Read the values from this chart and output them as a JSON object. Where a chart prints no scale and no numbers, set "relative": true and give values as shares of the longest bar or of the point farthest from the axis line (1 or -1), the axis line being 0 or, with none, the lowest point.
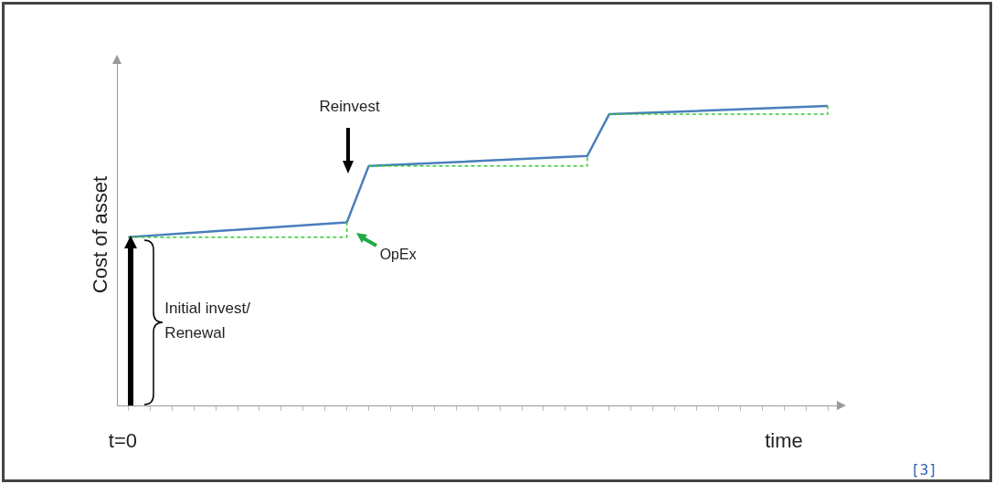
{
  "chart_data": {
    "type": "line",
    "relative": true,
    "ylabel": "Cost of asset",
    "xlabel": "time",
    "legend": false,
    "tick_labels": false,
    "marker": "none",
    "categories": [
      null,
      null,
      null,
      null,
      null,
      null,
      null,
      null,
      null,
      null,
      null,
      null,
      null,
      null,
      null,
      null,
      null,
      null,
      null,
      null,
      null,
      null,
      null,
      null,
      null,
      null,
      null,
      null,
      null,
      null,
      null,
      null,
      null
    ],
    "series": [
      {
        "type": "line",
        "color": "#4a7ebb",
        "line_style": "solid",
        "values": [
          0.562,
          null,
          null,
          null,
          null,
          null,
          null,
          null,
          null,
          null,
          0.611,
          0.799,
          null,
          null,
          null,
          null,
          null,
          null,
          null,
          null,
          null,
          0.833,
          0.972,
          null,
          null,
          null,
          null,
          null,
          null,
          null,
          null,
          null,
          1
        ]
      },
      {
        "type": "step",
        "color": "#33cc33",
        "line_style": "dashed",
        "values": [
          0.562,
          null,
          null,
          null,
          null,
          null,
          null,
          null,
          null,
          null,
          0.611,
          null,
          null,
          null,
          null,
          null,
          null,
          null,
          null,
          null,
          null,
          null,
          null,
          null,
          null,
          null,
          null,
          null,
          null,
          null,
          null,
          null,
          null
        ]
      },
      {
        "type": "step",
        "color": "#33cc33",
        "line_style": "dashed",
        "values": [
          null,
          null,
          null,
          null,
          null,
          null,
          null,
          null,
          null,
          null,
          null,
          0.799,
          null,
          null,
          null,
          null,
          null,
          null,
          null,
          null,
          null,
          0.833,
          null,
          null,
          null,
          null,
          null,
          null,
          null,
          null,
          null,
          null,
          null
        ]
      },
      {
        "type": "step",
        "color": "#33cc33",
        "line_style": "dashed",
        "values": [
          null,
          null,
          null,
          null,
          null,
          null,
          null,
          null,
          null,
          null,
          null,
          null,
          null,
          null,
          null,
          null,
          null,
          null,
          null,
          null,
          null,
          null,
          0.972,
          null,
          null,
          null,
          null,
          null,
          null,
          null,
          null,
          null,
          1
        ]
      }
    ],
    "annotations": [
      "Reinvest",
      "OpEx",
      "Initial invest/\nRenewal",
      "t=0",
      "[3]"
    ]
  }
}
